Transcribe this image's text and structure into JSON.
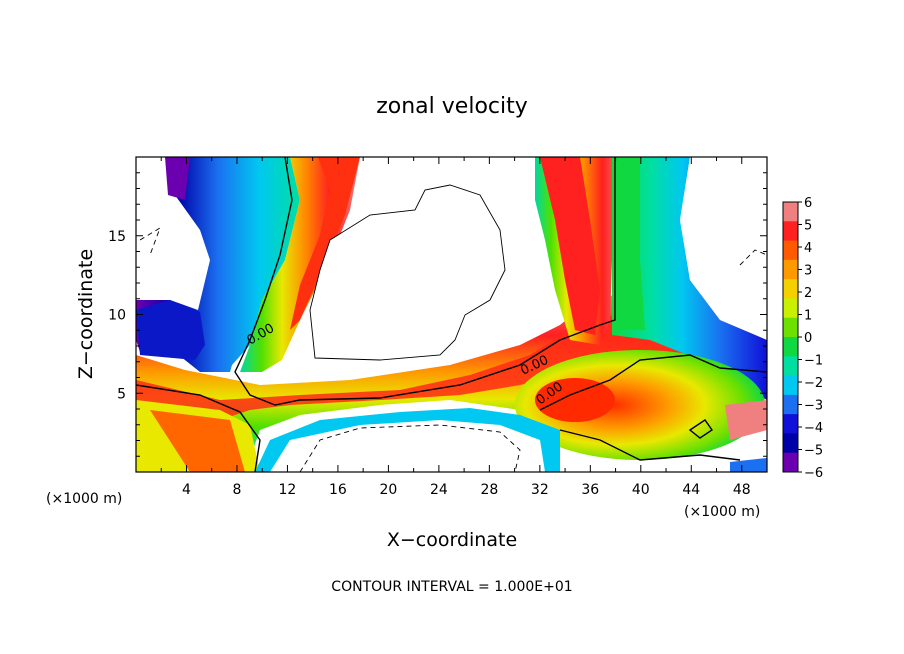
{
  "chart_data": {
    "type": "heatmap",
    "title": "zonal velocity",
    "xlabel": "X−coordinate",
    "ylabel": "Z−coordinate",
    "x_unit_left": "(×1000 m)",
    "x_unit_right": "(×1000 m)",
    "footer": "CONTOUR INTERVAL = 1.000E+01",
    "xlim": [
      0,
      50
    ],
    "ylim": [
      0,
      20
    ],
    "x_ticks": [
      "4",
      "8",
      "12",
      "16",
      "20",
      "24",
      "28",
      "32",
      "36",
      "40",
      "44",
      "48"
    ],
    "y_ticks": [
      "5",
      "10",
      "15"
    ],
    "colorbar": {
      "range": [
        -6,
        6
      ],
      "labels": [
        "6",
        "5",
        "4",
        "3",
        "2",
        "1",
        "0",
        "−1",
        "−2",
        "−3",
        "−4",
        "−5",
        "−6"
      ],
      "colors": [
        "#f08080",
        "#ff2020",
        "#ff5a00",
        "#ff9900",
        "#f5d000",
        "#c8f000",
        "#6de000",
        "#10d840",
        "#00dfa0",
        "#00c8f0",
        "#1a70f0",
        "#1010d8",
        "#0000a8",
        "#6a00b0"
      ]
    },
    "contour_labels": [
      "0.00",
      "0.00",
      "0.00"
    ],
    "grid": false,
    "legend": "right"
  }
}
